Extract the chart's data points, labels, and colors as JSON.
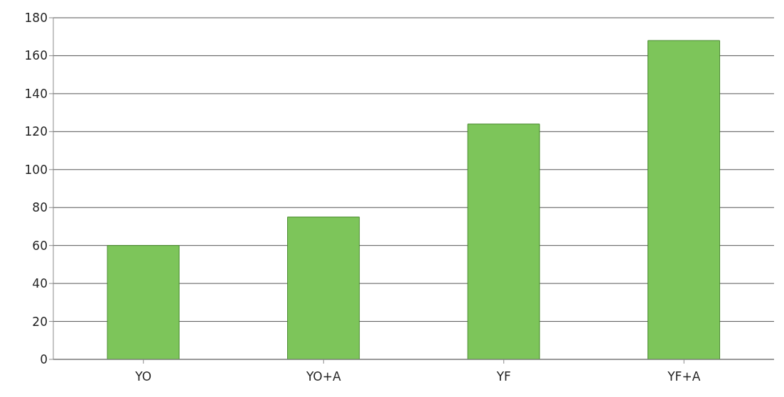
{
  "chart_data": {
    "type": "bar",
    "categories": [
      "YO",
      "YO+A",
      "YF",
      "YF+A"
    ],
    "values": [
      60,
      75,
      124,
      168
    ],
    "color": "#7dc55a",
    "ylim": [
      0,
      180
    ],
    "yticks": [
      0,
      20,
      40,
      60,
      80,
      100,
      120,
      140,
      160,
      180
    ],
    "grid": "y"
  }
}
